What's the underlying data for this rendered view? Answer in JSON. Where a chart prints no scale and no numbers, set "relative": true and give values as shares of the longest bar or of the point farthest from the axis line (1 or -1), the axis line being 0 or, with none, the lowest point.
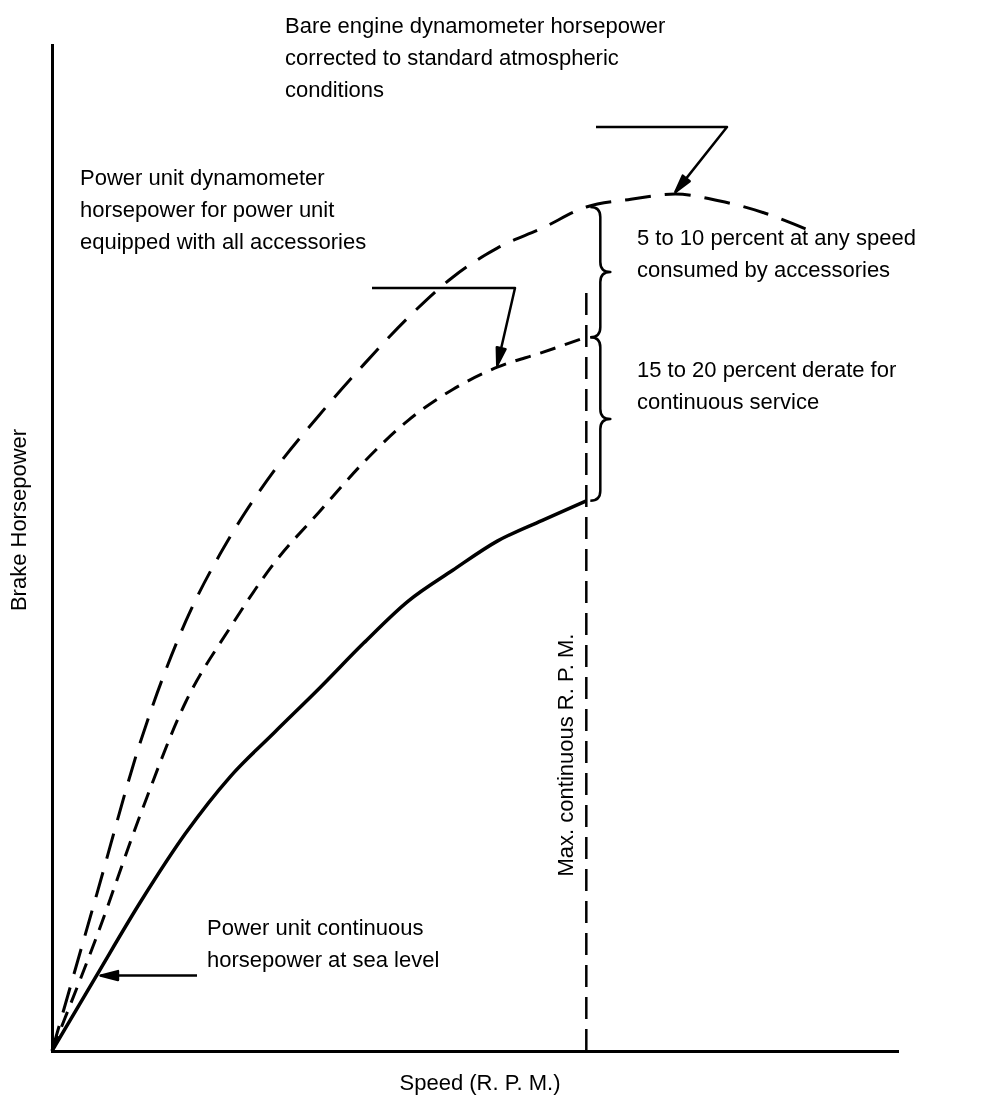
{
  "chart_data": {
    "type": "line",
    "relative": true,
    "xlabel": "Speed (R. P. M.)",
    "ylabel": "Brake Horsepower",
    "grid": false,
    "legend": false,
    "marker": "none",
    "categories": [
      null,
      null,
      null,
      null,
      null,
      null,
      null,
      null,
      null,
      null,
      null,
      null,
      null,
      null,
      null,
      null,
      null,
      null,
      null,
      null
    ],
    "series": [
      {
        "color": "#000000",
        "line_style": "dashed",
        "values": [
          0,
          0.182,
          0.363,
          0.501,
          0.6,
          0.678,
          0.742,
          0.801,
          0.856,
          0.903,
          0.937,
          0.96,
          0.985,
          0.994,
          1,
          0.992,
          0.978,
          0.958,
          null,
          null
        ]
      },
      {
        "color": "#000000",
        "line_style": "dashed",
        "values": [
          0,
          0.133,
          0.278,
          0.407,
          0.494,
          0.57,
          0.629,
          0.687,
          0.736,
          0.772,
          0.798,
          0.815,
          0.833,
          null,
          null,
          null,
          null,
          null,
          null,
          null
        ]
      },
      {
        "color": "#000000",
        "line_style": "solid",
        "values": [
          0,
          0.088,
          0.175,
          0.254,
          0.32,
          0.372,
          0.423,
          0.476,
          0.525,
          0.561,
          0.595,
          0.619,
          0.642,
          null,
          null,
          null,
          null,
          null,
          null,
          null
        ]
      }
    ],
    "annotations": [
      "Bare engine dynamometer horsepower corrected to standard atmospheric conditions",
      "Power unit dynamometer horsepower for power unit equipped with all accessories",
      "5 to 10 percent at any speed consumed by accessories",
      "15 to 20 percent derate for continuous service",
      "Power unit continuous horsepower at sea level",
      "Max. continuous R. P. M."
    ]
  }
}
